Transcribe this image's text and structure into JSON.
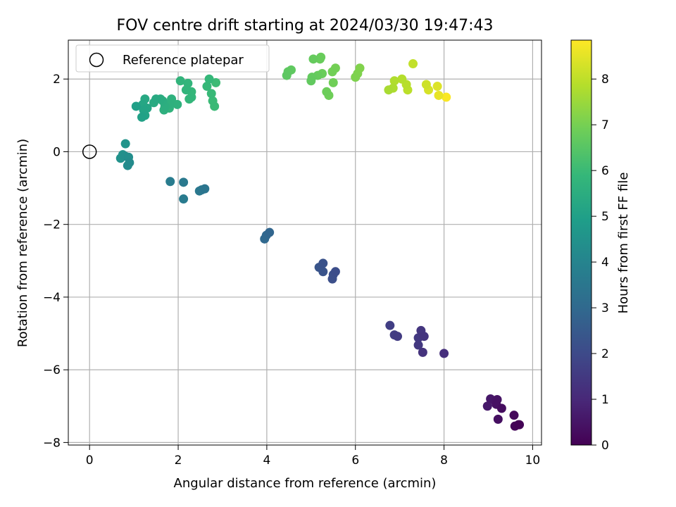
{
  "chart_data": {
    "type": "scatter",
    "title": "FOV centre drift starting at 2024/03/30 19:47:43",
    "xlabel": "Angular distance from reference (arcmin)",
    "ylabel": "Rotation from reference (arcmin)",
    "xlim": [
      -0.48,
      10.2
    ],
    "ylim": [
      -8.07,
      3.07
    ],
    "xticks": [
      0,
      2,
      4,
      6,
      8,
      10
    ],
    "xtick_labels": [
      "0",
      "2",
      "4",
      "6",
      "8",
      "10"
    ],
    "yticks": [
      -8,
      -6,
      -4,
      -2,
      0,
      2
    ],
    "ytick_labels": [
      "−8",
      "−6",
      "−4",
      "−2",
      "0",
      "2"
    ],
    "grid": true,
    "legend": {
      "position": "top-left",
      "entries": [
        "Reference platepar"
      ]
    },
    "reference_point": {
      "x": 0,
      "y": 0,
      "marker": "open circle",
      "color": "#000000"
    },
    "colorbar": {
      "label": "Hours from first FF file",
      "min": 0,
      "max": 8.85,
      "ticks": [
        0,
        1,
        2,
        3,
        4,
        5,
        6,
        7,
        8
      ],
      "tick_labels": [
        "0",
        "1",
        "2",
        "3",
        "4",
        "5",
        "6",
        "7",
        "8"
      ],
      "colormap": "viridis",
      "colors": [
        "#440154",
        "#482878",
        "#3e4989",
        "#31688e",
        "#26828e",
        "#1f9e89",
        "#35b779",
        "#6ece58",
        "#b5de2b",
        "#fde725"
      ]
    },
    "points": [
      {
        "x": 9.7,
        "y": -7.51,
        "t": 0.05
      },
      {
        "x": 9.6,
        "y": -7.55,
        "t": 0.1
      },
      {
        "x": 9.68,
        "y": -7.51,
        "t": 0.15
      },
      {
        "x": 9.58,
        "y": -7.25,
        "t": 0.2
      },
      {
        "x": 9.3,
        "y": -7.06,
        "t": 0.3
      },
      {
        "x": 9.22,
        "y": -7.36,
        "t": 0.35
      },
      {
        "x": 9.18,
        "y": -6.95,
        "t": 0.4
      },
      {
        "x": 9.2,
        "y": -6.82,
        "t": 0.45
      },
      {
        "x": 9.15,
        "y": -6.86,
        "t": 0.5
      },
      {
        "x": 9.05,
        "y": -6.8,
        "t": 0.55
      },
      {
        "x": 8.98,
        "y": -7.0,
        "t": 0.6
      },
      {
        "x": 8.0,
        "y": -5.55,
        "t": 1.2
      },
      {
        "x": 7.52,
        "y": -5.52,
        "t": 1.3
      },
      {
        "x": 7.55,
        "y": -5.08,
        "t": 1.35
      },
      {
        "x": 7.48,
        "y": -4.92,
        "t": 1.4
      },
      {
        "x": 7.42,
        "y": -5.32,
        "t": 1.45
      },
      {
        "x": 7.42,
        "y": -5.12,
        "t": 1.5
      },
      {
        "x": 6.95,
        "y": -5.08,
        "t": 1.55
      },
      {
        "x": 6.88,
        "y": -5.04,
        "t": 1.6
      },
      {
        "x": 6.78,
        "y": -4.78,
        "t": 1.65
      },
      {
        "x": 5.55,
        "y": -3.3,
        "t": 2.1
      },
      {
        "x": 5.48,
        "y": -3.5,
        "t": 2.15
      },
      {
        "x": 5.5,
        "y": -3.38,
        "t": 2.2
      },
      {
        "x": 5.27,
        "y": -3.07,
        "t": 2.25
      },
      {
        "x": 5.27,
        "y": -3.3,
        "t": 2.3
      },
      {
        "x": 5.18,
        "y": -3.18,
        "t": 2.35
      },
      {
        "x": 4.06,
        "y": -2.22,
        "t": 2.9
      },
      {
        "x": 3.99,
        "y": -2.3,
        "t": 2.95
      },
      {
        "x": 3.95,
        "y": -2.4,
        "t": 3.0
      },
      {
        "x": 2.6,
        "y": -1.02,
        "t": 3.45
      },
      {
        "x": 2.53,
        "y": -1.05,
        "t": 3.5
      },
      {
        "x": 2.48,
        "y": -1.08,
        "t": 3.55
      },
      {
        "x": 2.12,
        "y": -0.84,
        "t": 3.6
      },
      {
        "x": 2.12,
        "y": -1.3,
        "t": 3.65
      },
      {
        "x": 1.82,
        "y": -0.82,
        "t": 3.7
      },
      {
        "x": 0.9,
        "y": -0.3,
        "t": 4.25
      },
      {
        "x": 0.86,
        "y": -0.38,
        "t": 4.3
      },
      {
        "x": 0.88,
        "y": -0.15,
        "t": 4.35
      },
      {
        "x": 0.8,
        "y": -0.12,
        "t": 4.4
      },
      {
        "x": 0.75,
        "y": -0.08,
        "t": 4.45
      },
      {
        "x": 0.7,
        "y": -0.18,
        "t": 4.5
      },
      {
        "x": 0.81,
        "y": 0.22,
        "t": 4.55
      },
      {
        "x": 1.05,
        "y": 1.25,
        "t": 5.0
      },
      {
        "x": 1.18,
        "y": 0.95,
        "t": 5.05
      },
      {
        "x": 1.25,
        "y": 1.0,
        "t": 5.1
      },
      {
        "x": 1.22,
        "y": 1.15,
        "t": 5.15
      },
      {
        "x": 1.3,
        "y": 1.2,
        "t": 5.2
      },
      {
        "x": 1.2,
        "y": 1.3,
        "t": 5.25
      },
      {
        "x": 1.25,
        "y": 1.45,
        "t": 5.3
      },
      {
        "x": 1.5,
        "y": 1.45,
        "t": 5.35
      },
      {
        "x": 1.45,
        "y": 1.35,
        "t": 5.4
      },
      {
        "x": 1.6,
        "y": 1.45,
        "t": 5.45
      },
      {
        "x": 1.65,
        "y": 1.4,
        "t": 5.5
      },
      {
        "x": 1.7,
        "y": 1.25,
        "t": 5.55
      },
      {
        "x": 1.68,
        "y": 1.15,
        "t": 5.6
      },
      {
        "x": 1.8,
        "y": 1.3,
        "t": 5.62
      },
      {
        "x": 1.85,
        "y": 1.45,
        "t": 5.65
      },
      {
        "x": 1.98,
        "y": 1.3,
        "t": 5.68
      },
      {
        "x": 1.8,
        "y": 1.2,
        "t": 5.7
      },
      {
        "x": 2.05,
        "y": 1.95,
        "t": 5.75
      },
      {
        "x": 2.18,
        "y": 1.7,
        "t": 5.78
      },
      {
        "x": 2.22,
        "y": 1.88,
        "t": 5.8
      },
      {
        "x": 2.25,
        "y": 1.45,
        "t": 5.82
      },
      {
        "x": 2.3,
        "y": 1.5,
        "t": 5.85
      },
      {
        "x": 2.3,
        "y": 1.65,
        "t": 5.88
      },
      {
        "x": 2.7,
        "y": 2.0,
        "t": 5.9
      },
      {
        "x": 2.65,
        "y": 1.8,
        "t": 5.92
      },
      {
        "x": 2.75,
        "y": 1.6,
        "t": 5.95
      },
      {
        "x": 2.78,
        "y": 1.4,
        "t": 5.98
      },
      {
        "x": 2.82,
        "y": 1.25,
        "t": 6.0
      },
      {
        "x": 2.85,
        "y": 1.9,
        "t": 6.02
      },
      {
        "x": 4.45,
        "y": 2.1,
        "t": 6.6
      },
      {
        "x": 4.48,
        "y": 2.2,
        "t": 6.62
      },
      {
        "x": 4.55,
        "y": 2.25,
        "t": 6.65
      },
      {
        "x": 5.0,
        "y": 1.95,
        "t": 6.68
      },
      {
        "x": 5.02,
        "y": 2.05,
        "t": 6.7
      },
      {
        "x": 5.05,
        "y": 2.55,
        "t": 6.72
      },
      {
        "x": 5.15,
        "y": 2.1,
        "t": 6.75
      },
      {
        "x": 5.2,
        "y": 2.55,
        "t": 6.78
      },
      {
        "x": 5.22,
        "y": 2.6,
        "t": 6.8
      },
      {
        "x": 5.25,
        "y": 2.15,
        "t": 6.82
      },
      {
        "x": 5.35,
        "y": 1.65,
        "t": 6.85
      },
      {
        "x": 5.4,
        "y": 1.55,
        "t": 6.88
      },
      {
        "x": 5.5,
        "y": 1.9,
        "t": 6.9
      },
      {
        "x": 5.48,
        "y": 2.2,
        "t": 6.92
      },
      {
        "x": 5.55,
        "y": 2.3,
        "t": 6.95
      },
      {
        "x": 6.0,
        "y": 2.05,
        "t": 7.1
      },
      {
        "x": 6.05,
        "y": 2.15,
        "t": 7.12
      },
      {
        "x": 6.1,
        "y": 2.3,
        "t": 7.15
      },
      {
        "x": 6.75,
        "y": 1.7,
        "t": 7.7
      },
      {
        "x": 6.85,
        "y": 1.75,
        "t": 7.75
      },
      {
        "x": 6.88,
        "y": 1.95,
        "t": 7.8
      },
      {
        "x": 7.05,
        "y": 2.0,
        "t": 7.85
      },
      {
        "x": 7.15,
        "y": 1.85,
        "t": 7.9
      },
      {
        "x": 7.18,
        "y": 1.7,
        "t": 7.95
      },
      {
        "x": 7.3,
        "y": 2.42,
        "t": 8.05
      },
      {
        "x": 7.6,
        "y": 1.85,
        "t": 8.2
      },
      {
        "x": 7.65,
        "y": 1.7,
        "t": 8.3
      },
      {
        "x": 7.85,
        "y": 1.8,
        "t": 8.4
      },
      {
        "x": 7.88,
        "y": 1.55,
        "t": 8.55
      },
      {
        "x": 8.05,
        "y": 1.5,
        "t": 8.8
      }
    ]
  }
}
